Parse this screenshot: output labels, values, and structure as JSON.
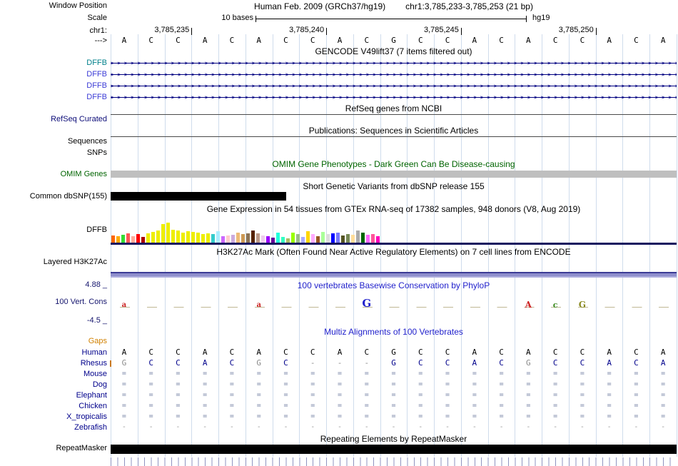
{
  "header": {
    "window_position_label": "Window Position",
    "assembly_title": "Human Feb. 2009 (GRCh37/hg19)",
    "range_title": "chr1:3,785,233-3,785,253 (21 bp)",
    "scale_label": "Scale",
    "scale_value": "10 bases",
    "assembly_tag": "hg19",
    "chrom_label": "chr1:",
    "strand_arrow": "--->",
    "coord_ticks": [
      {
        "label": "3,785,235",
        "boundary": 3
      },
      {
        "label": "3,785,240",
        "boundary": 8
      },
      {
        "label": "3,785,245",
        "boundary": 13
      },
      {
        "label": "3,785,250",
        "boundary": 18
      }
    ]
  },
  "sequence": [
    "A",
    "C",
    "C",
    "A",
    "C",
    "A",
    "C",
    "C",
    "A",
    "C",
    "G",
    "C",
    "C",
    "A",
    "C",
    "A",
    "C",
    "C",
    "A",
    "C",
    "A"
  ],
  "gencode": {
    "title": "GENCODE V49lift37 (7 items filtered out)",
    "arrow_char": ">",
    "transcripts": [
      {
        "label": "DFFB",
        "label_color": "#00808b"
      },
      {
        "label": "DFFB",
        "label_color": "#3b3bd6"
      },
      {
        "label": "DFFB",
        "label_color": "#3b3bd6"
      },
      {
        "label": "DFFB",
        "label_color": "#3b3bd6"
      }
    ]
  },
  "refseq": {
    "title": "RefSeq genes from NCBI",
    "label": "RefSeq Curated"
  },
  "publications": {
    "title": "Publications: Sequences in Scientific Articles",
    "row1_label": "Sequences",
    "row2_label": "SNPs"
  },
  "omim": {
    "title": "OMIM Gene Phenotypes - Dark Green Can Be Disease-causing",
    "label": "OMIM Genes",
    "bar_color": "#bfbfbf"
  },
  "dbsnp": {
    "title": "Short Genetic Variants from dbSNP release 155",
    "label": "Common dbSNP(155)",
    "bar_color": "#000000"
  },
  "gtex": {
    "title": "Gene Expression in 54 tissues from GTEx RNA-seq of 17382 samples, 948 donors (V8, Aug 2019)",
    "label": "DFFB"
  },
  "h3k27ac": {
    "title": "H3K27Ac Mark (Often Found Near Active Regulatory Elements) on 7 cell lines from ENCODE",
    "label": "Layered H3K27Ac"
  },
  "conservation": {
    "title": "100 vertebrates Basewise Conservation by PhyloP",
    "label": "100 Vert. Cons",
    "max_label": "4.88 _",
    "min_label": "-4.5 _",
    "glyphs": [
      {
        "i": 0,
        "ch": "a",
        "color": "#cc2222",
        "fs": 10
      },
      {
        "i": 5,
        "ch": "a",
        "color": "#cc2222",
        "fs": 10
      },
      {
        "i": 9,
        "ch": "G",
        "color": "#2222cc",
        "fs": 15
      },
      {
        "i": 15,
        "ch": "A",
        "color": "#cc2222",
        "fs": 12
      },
      {
        "i": 16,
        "ch": "c",
        "color": "#3d8b22",
        "fs": 11
      },
      {
        "i": 17,
        "ch": "G",
        "color": "#8b8b22",
        "fs": 12
      }
    ]
  },
  "multiz": {
    "title": "Multiz Alignments of 100 Vertebrates",
    "gaps_label": "Gaps",
    "species": [
      {
        "name": "Human",
        "color": "#000000",
        "cells": [
          "A",
          "C",
          "C",
          "A",
          "C",
          "A",
          "C",
          "C",
          "A",
          "C",
          "G",
          "C",
          "C",
          "A",
          "C",
          "A",
          "C",
          "C",
          "A",
          "C",
          "A"
        ]
      },
      {
        "name": "Rhesus",
        "color": "#00008B",
        "break_marker": true,
        "cells": [
          {
            "t": "G",
            "m": true
          },
          "C",
          "C",
          "A",
          "C",
          {
            "t": "G",
            "m": true
          },
          "C",
          {
            "t": "-",
            "m": true
          },
          {
            "t": "-",
            "m": true
          },
          {
            "t": "-",
            "m": true
          },
          "G",
          "C",
          "C",
          "A",
          "C",
          {
            "t": "G",
            "m": true
          },
          "C",
          "C",
          "A",
          "C",
          "A"
        ]
      },
      {
        "name": "Mouse",
        "color": "#7a87a8",
        "small": true,
        "cells": [
          "=",
          "=",
          "=",
          "=",
          "=",
          "=",
          "=",
          "=",
          "=",
          "=",
          "=",
          "=",
          "=",
          "=",
          "=",
          "=",
          "=",
          "=",
          "=",
          "=",
          "="
        ]
      },
      {
        "name": "Dog",
        "color": "#7a87a8",
        "small": true,
        "cells": [
          "=",
          "=",
          "=",
          "=",
          "=",
          "=",
          "=",
          "=",
          "=",
          "=",
          "=",
          "=",
          "=",
          "=",
          "=",
          "=",
          "=",
          "=",
          "=",
          "=",
          "="
        ]
      },
      {
        "name": "Elephant",
        "color": "#7a87a8",
        "small": true,
        "cells": [
          "=",
          "=",
          "=",
          "=",
          "=",
          "=",
          "=",
          "=",
          "=",
          "=",
          "=",
          "=",
          "=",
          "=",
          "=",
          "=",
          "=",
          "=",
          "=",
          "=",
          "="
        ]
      },
      {
        "name": "Chicken",
        "color": "#7a87a8",
        "small": true,
        "cells": [
          "=",
          "=",
          "=",
          "=",
          "=",
          "=",
          "=",
          "=",
          "=",
          "=",
          "=",
          "=",
          "=",
          "=",
          "=",
          "=",
          "=",
          "=",
          "=",
          "=",
          "="
        ]
      },
      {
        "name": "X_tropicalis",
        "color": "#7a87a8",
        "small": true,
        "cells": [
          "=",
          "=",
          "=",
          "=",
          "=",
          "=",
          "=",
          "=",
          "=",
          "=",
          "=",
          "=",
          "=",
          "=",
          "=",
          "=",
          "=",
          "=",
          "=",
          "=",
          "="
        ]
      },
      {
        "name": "Zebrafish",
        "color": "#999999",
        "small": true,
        "cells": [
          "-",
          "-",
          "-",
          "-",
          "-",
          "-",
          "-",
          "-",
          "-",
          "-",
          "-",
          "-",
          "-",
          "-",
          "-",
          "-",
          "-",
          "-",
          "-",
          "-",
          "-"
        ]
      }
    ]
  },
  "repeatmasker": {
    "title": "Repeating Elements by RepeatMasker",
    "label": "RepeatMasker",
    "bar_color": "#000000"
  },
  "colors": {
    "gene_line_navy": "#000080",
    "gene_label_blue": "#3b3bd6",
    "gene_label_teal": "#00808b",
    "omim_green": "#006400",
    "title_blue": "#2222cc",
    "gaps_orange": "#d08000",
    "alignment_navy": "#00008B",
    "h3k27ac_slate": "#8e8ecc",
    "omim_bar_gray": "#bfbfbf"
  },
  "chart_data": {
    "type": "bar",
    "title": "Gene Expression in 54 tissues from GTEx RNA-seq of 17382 samples, 948 donors (V8, Aug 2019)",
    "gene": "DFFB",
    "n_bars": 54,
    "ylabel": "",
    "values": [
      10,
      9,
      11,
      13,
      9,
      12,
      8,
      13,
      15,
      17,
      26,
      28,
      18,
      17,
      14,
      16,
      15,
      14,
      12,
      13,
      12,
      16,
      9,
      10,
      11,
      14,
      12,
      13,
      17,
      13,
      10,
      9,
      7,
      14,
      8,
      6,
      14,
      12,
      8,
      16,
      12,
      9,
      15,
      12,
      13,
      14,
      10,
      12,
      11,
      17,
      14,
      11,
      12,
      9
    ],
    "colors": [
      "#FF6600",
      "#FFAA00",
      "#33DD33",
      "#FF5555",
      "#FFAA99",
      "#FF0000",
      "#AA0000",
      "#EEEE00",
      "#EEEE00",
      "#EEEE00",
      "#EEEE00",
      "#EEEE00",
      "#EEEE00",
      "#EEEE00",
      "#EEEE00",
      "#EEEE00",
      "#EEEE00",
      "#EEEE00",
      "#EEEE00",
      "#EEEE00",
      "#33CCCC",
      "#AAEEFF",
      "#CC66FF",
      "#FFCCCC",
      "#CCAADD",
      "#EEBB77",
      "#CC9955",
      "#8B7355",
      "#552200",
      "#BB9988",
      "#EECCEE",
      "#9900FF",
      "#660099",
      "#22FFDD",
      "#33FFC2",
      "#AABB66",
      "#99FF00",
      "#99BB88",
      "#AAAAFF",
      "#FFD700",
      "#FFAAFF",
      "#995522",
      "#AAFF99",
      "#DDDDDD",
      "#0000FF",
      "#7777FF",
      "#555522",
      "#778855",
      "#FFDD99",
      "#AAAAAA",
      "#006600",
      "#FF66FF",
      "#FF5599",
      "#FF00BB"
    ]
  }
}
